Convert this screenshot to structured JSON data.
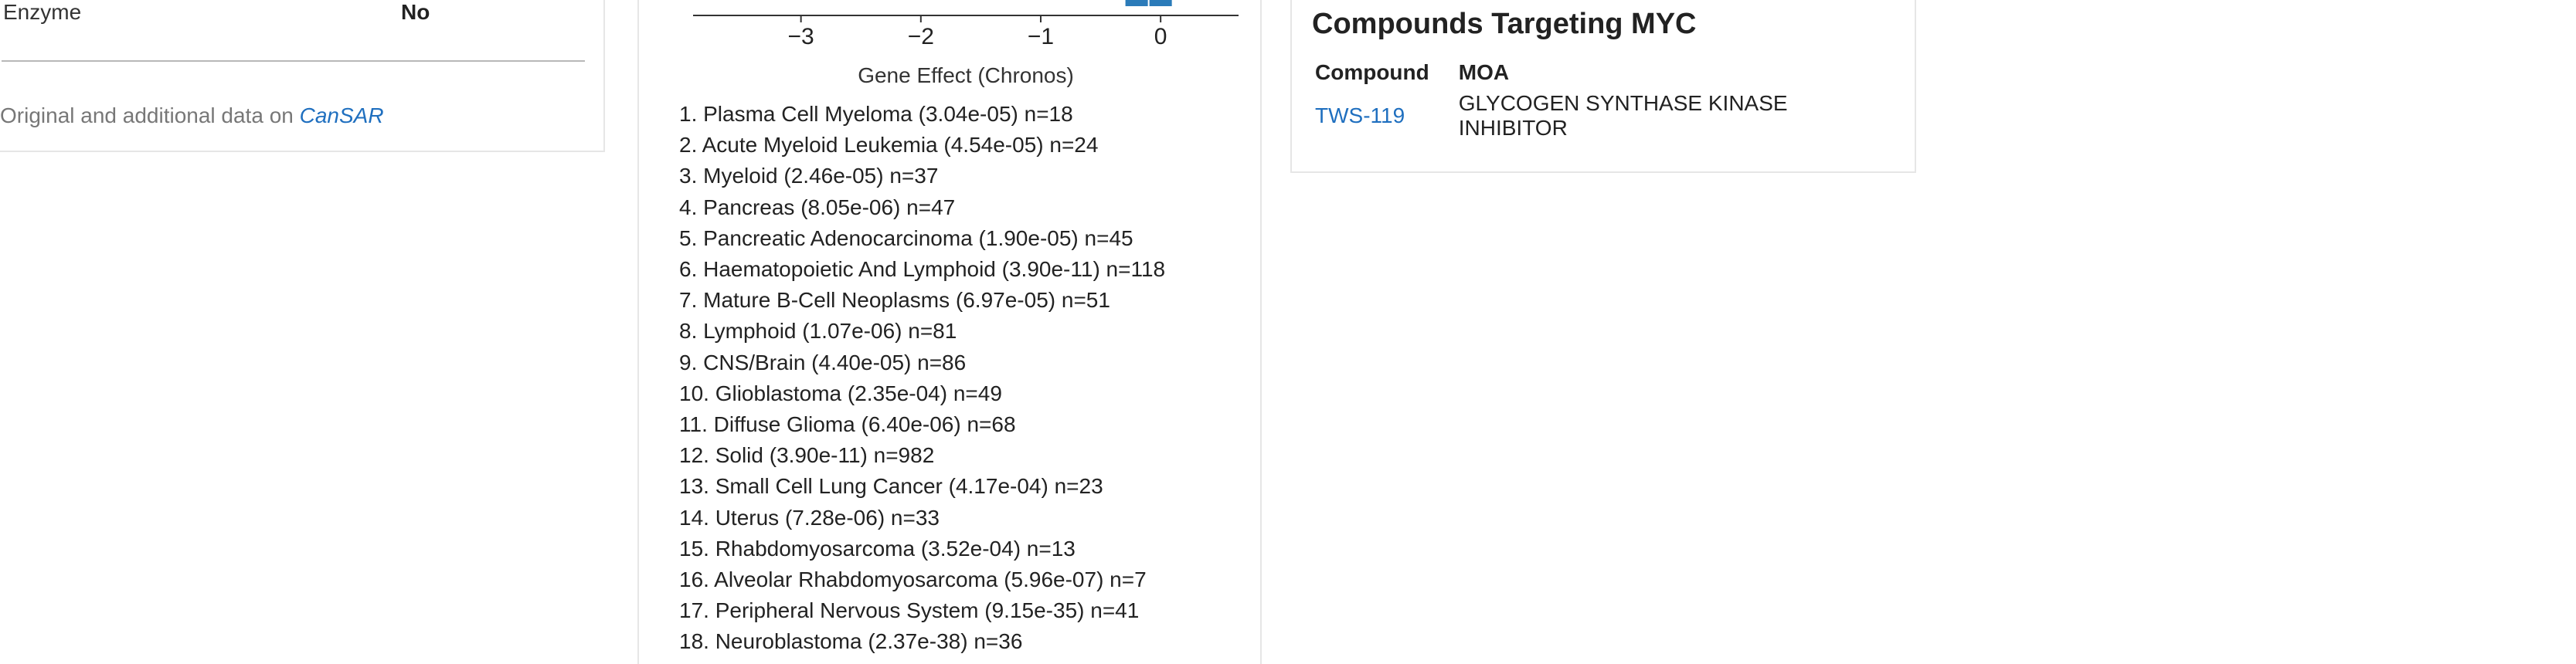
{
  "left": {
    "row": {
      "key": "Enzyme",
      "value": "No"
    },
    "source_prefix": "Original and additional data on",
    "source_link": "CanSAR"
  },
  "chart_data": {
    "type": "bar",
    "xlabel": "Gene Effect (Chronos)",
    "xlim": [
      -3.9,
      0.65
    ],
    "xticks": [
      "−3",
      "−2",
      "−1",
      "0"
    ],
    "xtick_values": [
      -3,
      -2,
      -1,
      0
    ],
    "bars": [
      {
        "x_start": -0.3,
        "x_end": -0.1,
        "color": "#2b7bb9"
      },
      {
        "x_start": -0.1,
        "x_end": 0.1,
        "color": "#2b7bb9"
      }
    ]
  },
  "lineages": [
    "1. Plasma Cell Myeloma (3.04e-05) n=18",
    "2. Acute Myeloid Leukemia (4.54e-05) n=24",
    "3. Myeloid (2.46e-05) n=37",
    "4. Pancreas (8.05e-06) n=47",
    "5. Pancreatic Adenocarcinoma (1.90e-05) n=45",
    "6. Haematopoietic And Lymphoid (3.90e-11) n=118",
    "7. Mature B-Cell Neoplasms (6.97e-05) n=51",
    "8. Lymphoid (1.07e-06) n=81",
    "9. CNS/Brain (4.40e-05) n=86",
    "10. Glioblastoma (2.35e-04) n=49",
    "11. Diffuse Glioma (6.40e-06) n=68",
    "12. Solid (3.90e-11) n=982",
    "13. Small Cell Lung Cancer (4.17e-04) n=23",
    "14. Uterus (7.28e-06) n=33",
    "15. Rhabdomyosarcoma (3.52e-04) n=13",
    "16. Alveolar Rhabdomyosarcoma (5.96e-07) n=7",
    "17. Peripheral Nervous System (9.15e-35) n=41",
    "18. Neuroblastoma (2.37e-38) n=36"
  ],
  "compounds": {
    "title": "Compounds Targeting MYC",
    "headers": [
      "Compound",
      "MOA"
    ],
    "rows": [
      {
        "compound": "TWS-119",
        "moa": "GLYCOGEN SYNTHASE KINASE INHIBITOR"
      }
    ]
  },
  "colors": {
    "link": "#1f6fbf",
    "bar": "#2b7bb9",
    "border": "#e6e6e6"
  }
}
